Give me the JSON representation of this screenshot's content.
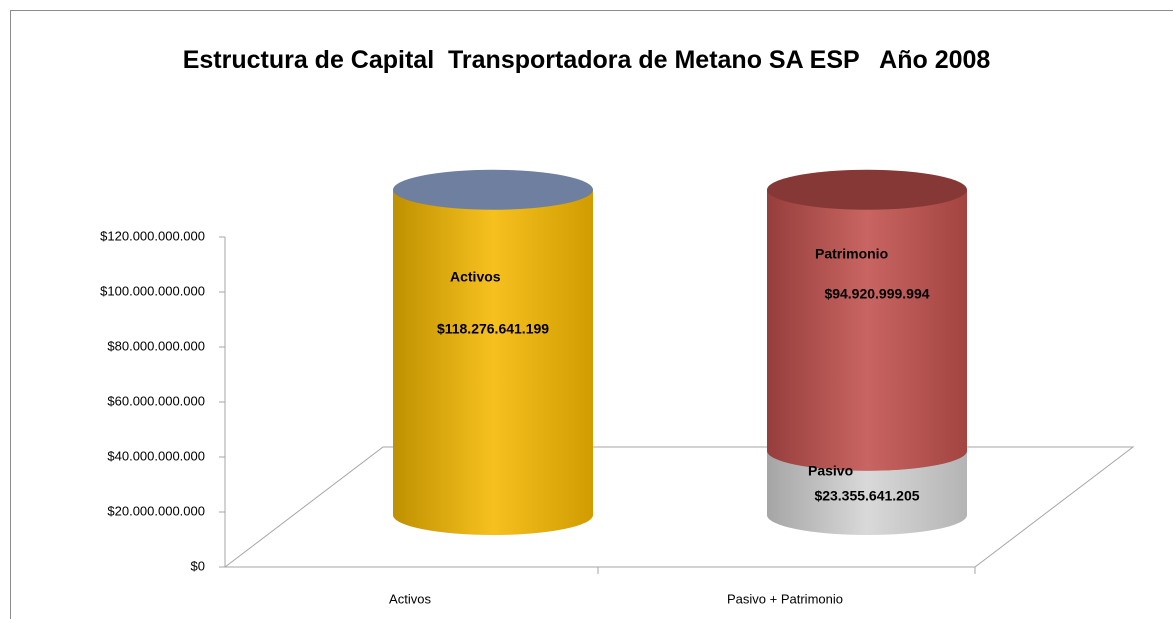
{
  "chart_data": {
    "type": "cylinder",
    "stacked": true,
    "title": "Estructura de Capital  Transportadora de Metano SA ESP   Año 2008",
    "categories": [
      "Activos",
      "Pasivo + Patrimonio"
    ],
    "series": [
      {
        "name": "Activos",
        "color": "#f5b800",
        "values": [
          118276641199,
          null
        ],
        "value_labels": [
          "$118.276.641.199",
          null
        ]
      },
      {
        "name": "Pasivo",
        "color": "#d4d4d4",
        "values": [
          null,
          23355641205
        ],
        "value_labels": [
          null,
          "$23.355.641.205"
        ]
      },
      {
        "name": "Patrimonio",
        "color": "#c0504d",
        "values": [
          null,
          94920999994
        ],
        "value_labels": [
          null,
          "$94.920.999.994"
        ]
      }
    ],
    "ylim": [
      0,
      120000000000
    ],
    "yticks": [
      {
        "value": 0,
        "label": "$0"
      },
      {
        "value": 20000000000,
        "label": "$20.000.000.000"
      },
      {
        "value": 40000000000,
        "label": "$40.000.000.000"
      },
      {
        "value": 60000000000,
        "label": "$60.000.000.000"
      },
      {
        "value": 80000000000,
        "label": "$80.000.000.000"
      },
      {
        "value": 100000000000,
        "label": "$100.000.000.000"
      },
      {
        "value": 120000000000,
        "label": "$120.000.000.000"
      }
    ]
  }
}
